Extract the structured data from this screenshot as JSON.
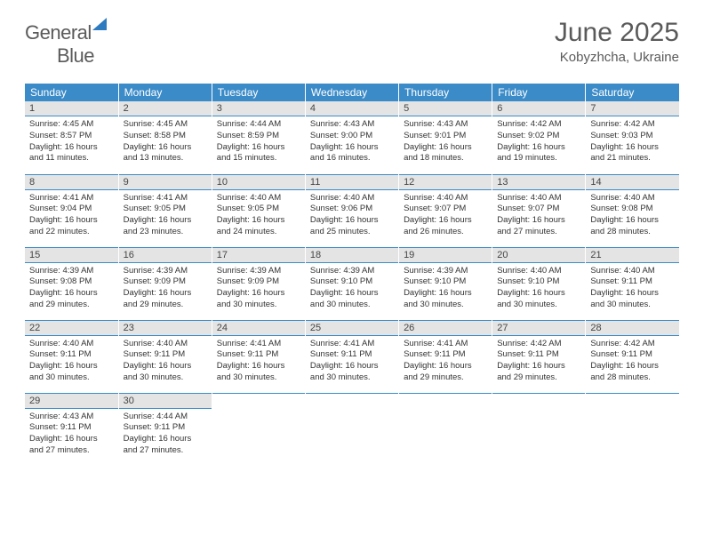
{
  "logo": {
    "part1": "General",
    "part2": "Blue"
  },
  "title": "June 2025",
  "location": "Kobyzhcha, Ukraine",
  "colors": {
    "header_bg": "#3b8bc8",
    "header_text": "#ffffff",
    "daynum_bg": "#e4e4e4",
    "border": "#3b8bc8",
    "text": "#333333",
    "logo_gray": "#5a5a5a",
    "logo_blue": "#2f7bbf"
  },
  "weekdays": [
    "Sunday",
    "Monday",
    "Tuesday",
    "Wednesday",
    "Thursday",
    "Friday",
    "Saturday"
  ],
  "weeks": [
    [
      {
        "n": "1",
        "sr": "4:45 AM",
        "ss": "8:57 PM",
        "dl": "16 hours and 11 minutes."
      },
      {
        "n": "2",
        "sr": "4:45 AM",
        "ss": "8:58 PM",
        "dl": "16 hours and 13 minutes."
      },
      {
        "n": "3",
        "sr": "4:44 AM",
        "ss": "8:59 PM",
        "dl": "16 hours and 15 minutes."
      },
      {
        "n": "4",
        "sr": "4:43 AM",
        "ss": "9:00 PM",
        "dl": "16 hours and 16 minutes."
      },
      {
        "n": "5",
        "sr": "4:43 AM",
        "ss": "9:01 PM",
        "dl": "16 hours and 18 minutes."
      },
      {
        "n": "6",
        "sr": "4:42 AM",
        "ss": "9:02 PM",
        "dl": "16 hours and 19 minutes."
      },
      {
        "n": "7",
        "sr": "4:42 AM",
        "ss": "9:03 PM",
        "dl": "16 hours and 21 minutes."
      }
    ],
    [
      {
        "n": "8",
        "sr": "4:41 AM",
        "ss": "9:04 PM",
        "dl": "16 hours and 22 minutes."
      },
      {
        "n": "9",
        "sr": "4:41 AM",
        "ss": "9:05 PM",
        "dl": "16 hours and 23 minutes."
      },
      {
        "n": "10",
        "sr": "4:40 AM",
        "ss": "9:05 PM",
        "dl": "16 hours and 24 minutes."
      },
      {
        "n": "11",
        "sr": "4:40 AM",
        "ss": "9:06 PM",
        "dl": "16 hours and 25 minutes."
      },
      {
        "n": "12",
        "sr": "4:40 AM",
        "ss": "9:07 PM",
        "dl": "16 hours and 26 minutes."
      },
      {
        "n": "13",
        "sr": "4:40 AM",
        "ss": "9:07 PM",
        "dl": "16 hours and 27 minutes."
      },
      {
        "n": "14",
        "sr": "4:40 AM",
        "ss": "9:08 PM",
        "dl": "16 hours and 28 minutes."
      }
    ],
    [
      {
        "n": "15",
        "sr": "4:39 AM",
        "ss": "9:08 PM",
        "dl": "16 hours and 29 minutes."
      },
      {
        "n": "16",
        "sr": "4:39 AM",
        "ss": "9:09 PM",
        "dl": "16 hours and 29 minutes."
      },
      {
        "n": "17",
        "sr": "4:39 AM",
        "ss": "9:09 PM",
        "dl": "16 hours and 30 minutes."
      },
      {
        "n": "18",
        "sr": "4:39 AM",
        "ss": "9:10 PM",
        "dl": "16 hours and 30 minutes."
      },
      {
        "n": "19",
        "sr": "4:39 AM",
        "ss": "9:10 PM",
        "dl": "16 hours and 30 minutes."
      },
      {
        "n": "20",
        "sr": "4:40 AM",
        "ss": "9:10 PM",
        "dl": "16 hours and 30 minutes."
      },
      {
        "n": "21",
        "sr": "4:40 AM",
        "ss": "9:11 PM",
        "dl": "16 hours and 30 minutes."
      }
    ],
    [
      {
        "n": "22",
        "sr": "4:40 AM",
        "ss": "9:11 PM",
        "dl": "16 hours and 30 minutes."
      },
      {
        "n": "23",
        "sr": "4:40 AM",
        "ss": "9:11 PM",
        "dl": "16 hours and 30 minutes."
      },
      {
        "n": "24",
        "sr": "4:41 AM",
        "ss": "9:11 PM",
        "dl": "16 hours and 30 minutes."
      },
      {
        "n": "25",
        "sr": "4:41 AM",
        "ss": "9:11 PM",
        "dl": "16 hours and 30 minutes."
      },
      {
        "n": "26",
        "sr": "4:41 AM",
        "ss": "9:11 PM",
        "dl": "16 hours and 29 minutes."
      },
      {
        "n": "27",
        "sr": "4:42 AM",
        "ss": "9:11 PM",
        "dl": "16 hours and 29 minutes."
      },
      {
        "n": "28",
        "sr": "4:42 AM",
        "ss": "9:11 PM",
        "dl": "16 hours and 28 minutes."
      }
    ],
    [
      {
        "n": "29",
        "sr": "4:43 AM",
        "ss": "9:11 PM",
        "dl": "16 hours and 27 minutes."
      },
      {
        "n": "30",
        "sr": "4:44 AM",
        "ss": "9:11 PM",
        "dl": "16 hours and 27 minutes."
      },
      null,
      null,
      null,
      null,
      null
    ]
  ],
  "labels": {
    "sunrise": "Sunrise:",
    "sunset": "Sunset:",
    "daylight": "Daylight:"
  }
}
